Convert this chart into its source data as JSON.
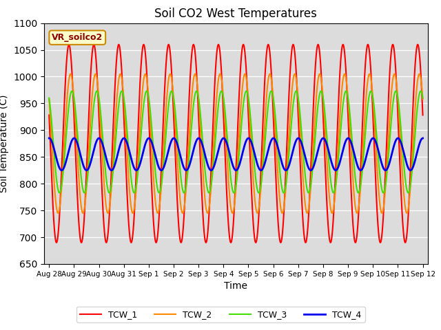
{
  "title": "Soil CO2 West Temperatures",
  "xlabel": "Time",
  "ylabel": "Soil Temperature (C)",
  "ylim": [
    650,
    1100
  ],
  "yticks": [
    650,
    700,
    750,
    800,
    850,
    900,
    950,
    1000,
    1050,
    1100
  ],
  "annotation": "VR_soilco2",
  "bg_color": "#dcdcdc",
  "line_colors": {
    "TCW_1": "#ff0000",
    "TCW_2": "#ff8800",
    "TCW_3": "#44dd00",
    "TCW_4": "#0000ee"
  },
  "line_widths": {
    "TCW_1": 1.5,
    "TCW_2": 1.5,
    "TCW_3": 1.5,
    "TCW_4": 2.0
  },
  "x_start_day": 0,
  "x_end_day": 15.0,
  "period_days": 1.0,
  "tcw1_mean": 875,
  "tcw1_amp": 185,
  "tcw1_phase": 2.85,
  "tcw2_mean": 875,
  "tcw2_amp": 130,
  "tcw2_phase": 2.45,
  "tcw3_mean": 878,
  "tcw3_amp": 95,
  "tcw3_phase": 2.1,
  "tcw4_mean": 855,
  "tcw4_amp": 30,
  "tcw4_phase": 1.55,
  "xtick_labels": [
    "Aug 28",
    "Aug 29",
    "Aug 30",
    "Aug 31",
    "Sep 1",
    "Sep 2",
    "Sep 3",
    "Sep 4",
    "Sep 5",
    "Sep 6",
    "Sep 7",
    "Sep 8",
    "Sep 9",
    "Sep 10",
    "Sep 11",
    "Sep 12"
  ],
  "xtick_positions": [
    0,
    1,
    2,
    3,
    4,
    5,
    6,
    7,
    8,
    9,
    10,
    11,
    12,
    13,
    14,
    15
  ]
}
